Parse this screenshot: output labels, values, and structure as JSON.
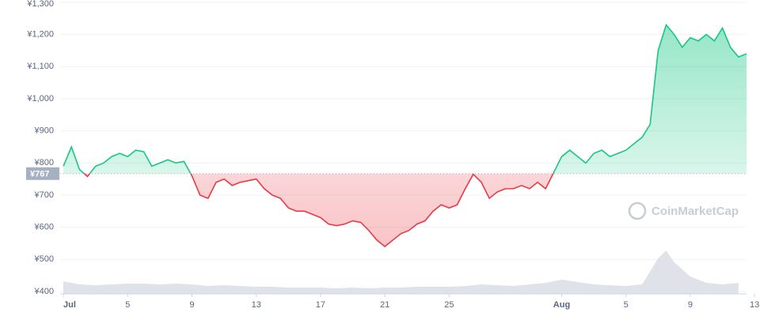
{
  "chart_data": {
    "type": "line",
    "x": [
      0,
      0.5,
      1,
      1.5,
      2,
      2.5,
      3,
      3.5,
      4,
      4.5,
      5,
      5.5,
      6,
      6.5,
      7,
      7.5,
      8,
      8.5,
      9,
      9.5,
      10,
      10.5,
      11,
      11.5,
      12,
      12.5,
      13,
      13.5,
      14,
      14.5,
      15,
      15.5,
      16,
      16.5,
      17,
      17.5,
      18,
      18.5,
      19,
      19.5,
      20,
      20.5,
      21,
      21.5,
      22,
      22.5,
      23,
      23.5,
      24,
      24.5,
      25,
      25.5,
      26,
      26.5,
      27,
      27.5,
      28,
      28.5,
      29,
      29.5,
      30,
      30.5,
      31,
      31.5,
      32,
      32.5,
      33,
      33.5,
      34,
      34.5,
      35,
      35.5,
      36,
      36.5,
      37,
      37.5,
      38,
      38.5,
      39,
      39.5,
      40,
      40.5,
      41,
      41.5,
      42,
      42.5
    ],
    "series": [
      {
        "color_up": "#16c784",
        "color_down": "#ea3943",
        "values": [
          790,
          850,
          780,
          758,
          790,
          800,
          820,
          830,
          820,
          840,
          835,
          790,
          800,
          810,
          800,
          805,
          760,
          700,
          690,
          740,
          750,
          730,
          740,
          745,
          750,
          720,
          700,
          690,
          660,
          650,
          650,
          640,
          630,
          610,
          605,
          610,
          620,
          615,
          590,
          560,
          540,
          560,
          580,
          590,
          610,
          620,
          650,
          670,
          660,
          670,
          720,
          765,
          740,
          690,
          710,
          720,
          720,
          730,
          720,
          740,
          720,
          770,
          820,
          840,
          820,
          800,
          830,
          840,
          820,
          830,
          840,
          860,
          880,
          920,
          1150,
          1230,
          1200,
          1160,
          1190,
          1180,
          1200,
          1180,
          1220,
          1160,
          1130,
          1140
        ]
      }
    ],
    "volume": {
      "color": "#dfe2e8",
      "x": [
        0,
        1,
        2,
        3,
        4,
        5,
        6,
        7,
        8,
        9,
        10,
        11,
        12,
        13,
        14,
        15,
        16,
        17,
        18,
        19,
        20,
        21,
        22,
        23,
        24,
        25,
        26,
        27,
        28,
        29,
        30,
        31,
        32,
        33,
        34,
        35,
        36,
        37,
        37.5,
        38,
        39,
        40,
        41,
        42
      ],
      "values": [
        16,
        12,
        11,
        12,
        13,
        13,
        12,
        13,
        12,
        10,
        11,
        10,
        9,
        9,
        8,
        8,
        8,
        7,
        8,
        7,
        8,
        8,
        9,
        9,
        9,
        10,
        12,
        11,
        10,
        12,
        14,
        18,
        15,
        12,
        11,
        10,
        12,
        45,
        55,
        40,
        22,
        14,
        12,
        14
      ]
    },
    "baseline": {
      "value": 767,
      "label": "¥767"
    },
    "xlim": [
      -0.2,
      42.5
    ],
    "ylim": [
      400,
      1300
    ],
    "yticks": [
      {
        "value": 400,
        "label": "¥400"
      },
      {
        "value": 500,
        "label": "¥500"
      },
      {
        "value": 600,
        "label": "¥600"
      },
      {
        "value": 700,
        "label": "¥700"
      },
      {
        "value": 800,
        "label": "¥800"
      },
      {
        "value": 900,
        "label": "¥900"
      },
      {
        "value": 1000,
        "label": "¥1,000"
      },
      {
        "value": 1100,
        "label": "¥1,100"
      },
      {
        "value": 1200,
        "label": "¥1,200"
      },
      {
        "value": 1300,
        "label": "¥1,300"
      }
    ],
    "xticks": [
      {
        "value": 0,
        "label": "Jul"
      },
      {
        "value": 4,
        "label": "5"
      },
      {
        "value": 8,
        "label": "9"
      },
      {
        "value": 12,
        "label": "13"
      },
      {
        "value": 16,
        "label": "17"
      },
      {
        "value": 20,
        "label": "21"
      },
      {
        "value": 24,
        "label": "25"
      },
      {
        "value": 31,
        "label": "Aug"
      },
      {
        "value": 35,
        "label": "5"
      },
      {
        "value": 39,
        "label": "9"
      },
      {
        "value": 43,
        "label": "13"
      }
    ],
    "grid": true,
    "watermark": "CoinMarketCap"
  }
}
